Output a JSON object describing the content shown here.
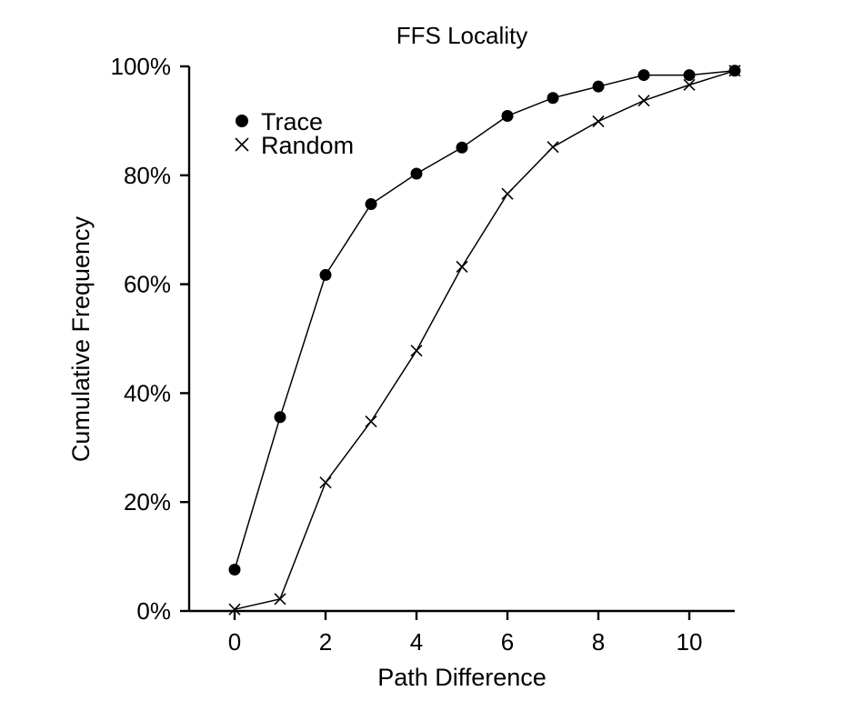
{
  "chart_data": {
    "type": "line",
    "title": "FFS Locality",
    "xlabel": "Path Difference",
    "ylabel": "Cumulative Frequency",
    "xlim": [
      -1,
      11
    ],
    "ylim": [
      0,
      100
    ],
    "x_ticks": [
      0,
      2,
      4,
      6,
      8,
      10
    ],
    "y_ticks": [
      0,
      20,
      40,
      60,
      80,
      100
    ],
    "y_tick_labels": [
      "0%",
      "20%",
      "40%",
      "60%",
      "80%",
      "100%"
    ],
    "grid": false,
    "legend_position": "top-left",
    "series": [
      {
        "name": "Trace",
        "marker": "filled-circle",
        "color": "#000000",
        "x": [
          0,
          1,
          2,
          3,
          4,
          5,
          6,
          7,
          8,
          9,
          10,
          11
        ],
        "values": [
          7.6,
          35.6,
          61.7,
          74.7,
          80.3,
          85.1,
          90.9,
          94.2,
          96.3,
          98.4,
          98.4,
          99.2
        ]
      },
      {
        "name": "Random",
        "marker": "x",
        "color": "#000000",
        "x": [
          0,
          1,
          2,
          3,
          4,
          5,
          6,
          7,
          8,
          9,
          10,
          11
        ],
        "values": [
          0.3,
          2.2,
          23.6,
          34.8,
          47.8,
          63.2,
          76.6,
          85.2,
          89.9,
          93.7,
          96.6,
          99.2
        ]
      }
    ]
  }
}
